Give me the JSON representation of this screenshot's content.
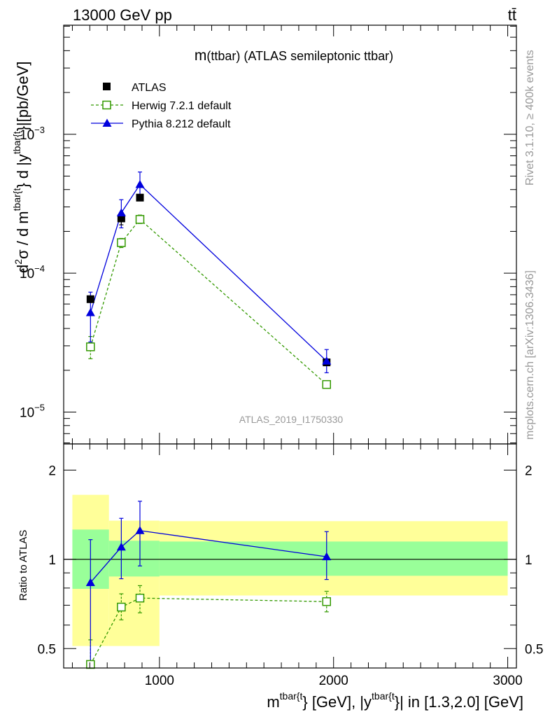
{
  "header": {
    "energy_label": "13000 GeV pp",
    "process_label": "tt̄"
  },
  "side": {
    "rivet_label": "Rivet 3.1.10, ≥ 400k events",
    "mcplots_label": "mcplots.cern.ch [arXiv:1306.3436]"
  },
  "colors": {
    "atlas": "#000000",
    "herwig": "#339900",
    "pythia": "#0000dd",
    "band_inner": "#99ff99",
    "band_outer": "#ffff99",
    "watermark": "#999999"
  },
  "chart_data": [
    {
      "type": "line",
      "title": "m(ttbar) (ATLAS semileptonic ttbar)",
      "title_main": "m",
      "title_rest": "(ttbar) (ATLAS semileptonic ttbar)",
      "analysis_id": "ATLAS_2019_I1750330",
      "yscale": "log",
      "xlim": [
        450,
        3050
      ],
      "ylim": [
        5.9e-06,
        0.0061
      ],
      "ylabel": {
        "main": "d",
        "sup1": "2",
        "sigma": "σ /  d m",
        "sup2": "tbar{t",
        "mid": "} d |y",
        "sup3": "tbar{t",
        "end": "}|[pb/GeV]"
      },
      "yticks": [
        {
          "value": 1e-05,
          "base": "10",
          "exp": "−5"
        },
        {
          "value": 0.0001,
          "base": "10",
          "exp": "−4"
        },
        {
          "value": 0.001,
          "base": "10",
          "exp": "−3"
        }
      ],
      "legend": [
        {
          "key": "atlas",
          "label": "ATLAS",
          "marker": "square"
        },
        {
          "key": "herwig",
          "label": "Herwig 7.2.1 default",
          "marker": "open-square"
        },
        {
          "key": "pythia",
          "label": "Pythia 8.212 default",
          "marker": "triangle"
        }
      ],
      "series": [
        {
          "name": "ATLAS",
          "x": [
            604,
            781,
            888,
            1960
          ],
          "values": [
            6.5e-05,
            0.000248,
            0.00035,
            2.28e-05
          ],
          "err_low": [
            6.5e-05,
            0.000223,
            0.00035,
            2.28e-05
          ],
          "err_high": [
            6.5e-05,
            0.000273,
            0.00035,
            2.28e-05
          ]
        },
        {
          "name": "Herwig 7.2.1 default",
          "x": [
            604,
            781,
            888,
            1960
          ],
          "values": [
            2.95e-05,
            0.000166,
            0.000244,
            1.58e-05
          ],
          "err_low": [
            2.42e-05,
            0.000153,
            0.000228,
            1.5e-05
          ],
          "err_high": [
            3.5e-05,
            0.000178,
            0.000262,
            1.68e-05
          ]
        },
        {
          "name": "Pythia 8.212 default",
          "x": [
            604,
            781,
            888,
            1960
          ],
          "values": [
            5.2e-05,
            0.000272,
            0.000435,
            2.33e-05
          ],
          "err_low": [
            3.2e-05,
            0.000212,
            0.000355,
            1.92e-05
          ],
          "err_high": [
            7.3e-05,
            0.000338,
            0.000535,
            2.82e-05
          ]
        }
      ]
    },
    {
      "type": "line",
      "title": "Ratio to ATLAS",
      "ylabel": "Ratio to ATLAS",
      "yscale": "log",
      "xlim": [
        450,
        3050
      ],
      "ylim": [
        0.43,
        2.45
      ],
      "xlabel": {
        "a": "m",
        "sup1": "tbar{t",
        "b": "} [GeV], |y",
        "sup2": "tbar{t",
        "c": "}| in [1.3,2.0] [GeV]"
      },
      "xticks": [
        {
          "value": 1000,
          "label": "1000"
        },
        {
          "value": 2000,
          "label": "2000"
        },
        {
          "value": 3000,
          "label": "3000"
        }
      ],
      "yticks": [
        {
          "value": 0.5,
          "label": "0.5"
        },
        {
          "value": 1,
          "label": "1"
        },
        {
          "value": 2,
          "label": "2"
        }
      ],
      "bands": [
        {
          "x0": 500,
          "x1": 710,
          "inner": [
            0.795,
            1.26
          ],
          "outer": [
            0.51,
            1.65
          ]
        },
        {
          "x0": 710,
          "x1": 1000,
          "inner": [
            0.875,
            1.155
          ],
          "outer": [
            0.51,
            1.35
          ]
        },
        {
          "x0": 1000,
          "x1": 3000,
          "inner": [
            0.88,
            1.148
          ],
          "outer": [
            0.755,
            1.345
          ]
        }
      ],
      "series": [
        {
          "name": "Herwig 7.2.1 default",
          "x": [
            604,
            781,
            888,
            1960
          ],
          "values": [
            0.442,
            0.69,
            0.74,
            0.72
          ],
          "err_low": [
            0.43,
            0.625,
            0.66,
            0.665
          ],
          "err_high": [
            0.535,
            0.765,
            0.815,
            0.78
          ]
        },
        {
          "name": "Pythia 8.212 default",
          "x": [
            604,
            781,
            888,
            1960
          ],
          "values": [
            0.835,
            1.1,
            1.25,
            1.02
          ],
          "err_low": [
            0.45,
            0.86,
            0.95,
            0.855
          ],
          "err_high": [
            1.165,
            1.375,
            1.57,
            1.24
          ]
        }
      ]
    }
  ]
}
